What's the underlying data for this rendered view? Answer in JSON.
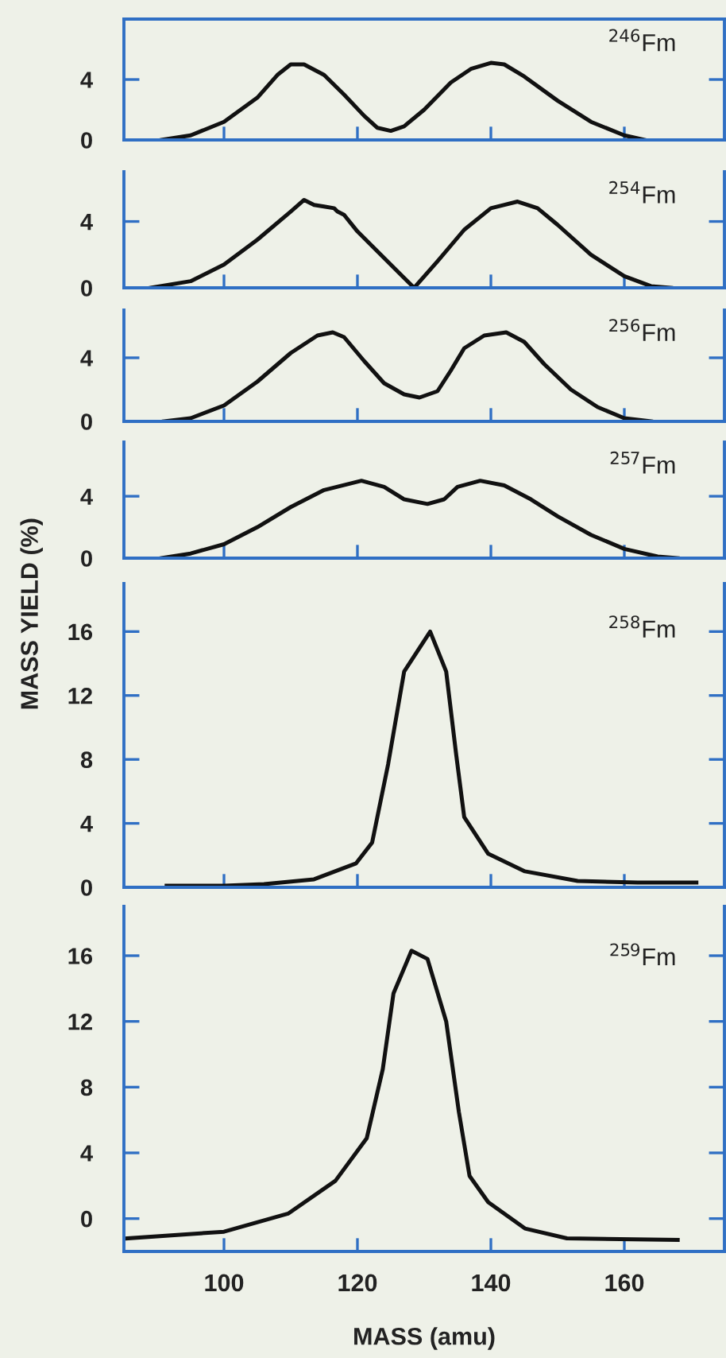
{
  "chart_data": [
    {
      "type": "line",
      "annotations": [
        "$^{246}$Fm"
      ],
      "xlim": [
        85,
        175
      ],
      "xticks": [
        100,
        120,
        140,
        160
      ],
      "ylim": [
        0,
        8
      ],
      "yticks": [
        0,
        4
      ],
      "tick_labels": "y",
      "grid": false,
      "legend": false,
      "series": [
        {
          "color": "#111111",
          "x": [
            90.6,
            95,
            100,
            105,
            108,
            110,
            112,
            115,
            118,
            121,
            123,
            125,
            127,
            130,
            134,
            137,
            140,
            142,
            145,
            150,
            155,
            160,
            163
          ],
          "values": [
            0.0,
            0.3,
            1.2,
            2.8,
            4.3,
            5.0,
            5.0,
            4.3,
            3.0,
            1.6,
            0.8,
            0.6,
            0.9,
            2.0,
            3.8,
            4.7,
            5.1,
            5.0,
            4.2,
            2.6,
            1.2,
            0.3,
            0.0
          ]
        }
      ]
    },
    {
      "type": "line",
      "annotations": [
        "$^{254}$Fm"
      ],
      "xlim": [
        85,
        175
      ],
      "xticks": [
        100,
        120,
        140,
        160
      ],
      "ylim": [
        0,
        7
      ],
      "yticks": [
        0,
        4
      ],
      "tick_labels": "y",
      "grid": false,
      "legend": false,
      "series": [
        {
          "color": "#111111",
          "x": [
            89,
            95,
            100,
            105,
            110,
            112,
            113.5,
            115,
            116.5,
            117,
            118,
            120,
            124,
            128.5,
            132,
            136,
            140,
            144,
            147,
            150,
            155,
            160,
            164,
            167
          ],
          "values": [
            0,
            0.4,
            1.4,
            2.9,
            4.6,
            5.3,
            5.0,
            4.9,
            4.8,
            4.6,
            4.4,
            3.4,
            1.8,
            0,
            1.6,
            3.5,
            4.8,
            5.2,
            4.8,
            3.8,
            2.0,
            0.7,
            0.1,
            0
          ]
        }
      ]
    },
    {
      "type": "line",
      "annotations": [
        "$^{256}$Fm"
      ],
      "xlim": [
        85,
        175
      ],
      "xticks": [
        100,
        120,
        140,
        160
      ],
      "ylim": [
        0,
        7
      ],
      "yticks": [
        0,
        4
      ],
      "tick_labels": "y",
      "grid": false,
      "legend": false,
      "series": [
        {
          "color": "#111111",
          "x": [
            91,
            95,
            100,
            105,
            110,
            114,
            116.3,
            118,
            121,
            124,
            127,
            129.3,
            132,
            134,
            136,
            139,
            142.3,
            145,
            148,
            152,
            156,
            160,
            164
          ],
          "values": [
            0,
            0.2,
            1.0,
            2.5,
            4.3,
            5.4,
            5.6,
            5.3,
            3.8,
            2.4,
            1.7,
            1.5,
            1.9,
            3.2,
            4.6,
            5.4,
            5.6,
            5.0,
            3.6,
            2.0,
            0.9,
            0.2,
            0
          ]
        }
      ]
    },
    {
      "type": "line",
      "annotations": [
        "$^{257}$Fm"
      ],
      "xlim": [
        85,
        175
      ],
      "xticks": [
        100,
        120,
        140,
        160
      ],
      "ylim": [
        0,
        7.5
      ],
      "yticks": [
        0,
        4
      ],
      "tick_labels": "y",
      "grid": false,
      "legend": false,
      "series": [
        {
          "color": "#111111",
          "x": [
            90.6,
            95,
            100,
            105,
            110,
            115,
            120.6,
            124,
            127,
            130.5,
            133,
            135,
            138.4,
            142,
            146,
            150,
            155,
            160,
            165,
            168
          ],
          "values": [
            0,
            0.3,
            0.9,
            2.0,
            3.3,
            4.4,
            5.0,
            4.6,
            3.8,
            3.5,
            3.8,
            4.6,
            5.0,
            4.7,
            3.8,
            2.7,
            1.5,
            0.6,
            0.1,
            0
          ]
        }
      ]
    },
    {
      "type": "line",
      "annotations": [
        "$^{258}$Fm"
      ],
      "ylabel": "MASS YIELD (%)",
      "xlim": [
        85,
        175
      ],
      "xticks": [
        100,
        120,
        140,
        160
      ],
      "ylim": [
        0,
        19
      ],
      "yticks": [
        0,
        4,
        8,
        12,
        16
      ],
      "tick_labels": "y",
      "grid": false,
      "legend": false,
      "series": [
        {
          "color": "#111111",
          "x": [
            91.4,
            100,
            106,
            113.5,
            119.8,
            122.2,
            124.6,
            127,
            130.9,
            133.3,
            134.8,
            136,
            139.6,
            145.1,
            153,
            162,
            170.8
          ],
          "values": [
            0.1,
            0.1,
            0.2,
            0.5,
            1.5,
            2.8,
            7.7,
            13.5,
            16,
            13.5,
            8.3,
            4.4,
            2.1,
            1.0,
            0.4,
            0.3,
            0.3
          ]
        }
      ]
    },
    {
      "type": "line",
      "annotations": [
        "$^{259}$Fm"
      ],
      "xlabel": "MASS (amu)",
      "xlim": [
        85,
        175
      ],
      "xticks": [
        100,
        120,
        140,
        160
      ],
      "ylim": [
        -2,
        19
      ],
      "yticks": [
        0,
        4,
        8,
        12,
        16
      ],
      "grid": false,
      "legend": false,
      "series": [
        {
          "color": "#111111",
          "x": [
            85.5,
            100,
            109.6,
            116.7,
            121.4,
            123.8,
            125.4,
            128.1,
            130.5,
            133.3,
            135.2,
            136.8,
            139.6,
            145.1,
            151.4,
            168
          ],
          "values": [
            -1.2,
            -0.8,
            0.3,
            2.3,
            4.9,
            9.1,
            13.7,
            16.3,
            15.8,
            12.0,
            6.5,
            2.6,
            1.0,
            -0.6,
            -1.2,
            -1.3
          ]
        }
      ]
    }
  ]
}
